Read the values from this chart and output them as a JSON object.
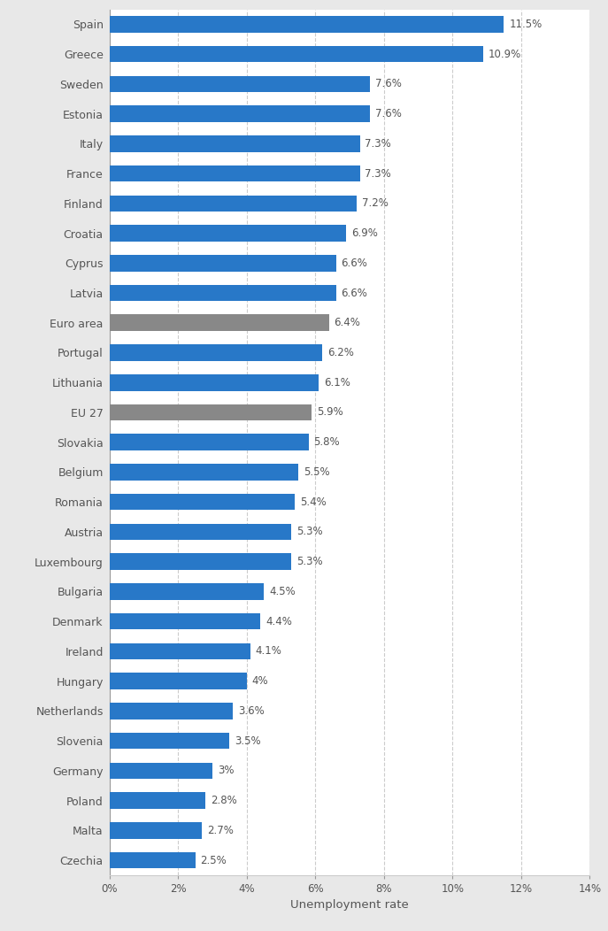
{
  "categories": [
    "Spain",
    "Greece",
    "Sweden",
    "Estonia",
    "Italy",
    "France",
    "Finland",
    "Croatia",
    "Cyprus",
    "Latvia",
    "Euro area",
    "Portugal",
    "Lithuania",
    "EU 27",
    "Slovakia",
    "Belgium",
    "Romania",
    "Austria",
    "Luxembourg",
    "Bulgaria",
    "Denmark",
    "Ireland",
    "Hungary",
    "Netherlands",
    "Slovenia",
    "Germany",
    "Poland",
    "Malta",
    "Czechia"
  ],
  "values": [
    11.5,
    10.9,
    7.6,
    7.6,
    7.3,
    7.3,
    7.2,
    6.9,
    6.6,
    6.6,
    6.4,
    6.2,
    6.1,
    5.9,
    5.8,
    5.5,
    5.4,
    5.3,
    5.3,
    4.5,
    4.4,
    4.1,
    4.0,
    3.6,
    3.5,
    3.0,
    2.8,
    2.7,
    2.5
  ],
  "bar_colors": [
    "#2878c8",
    "#2878c8",
    "#2878c8",
    "#2878c8",
    "#2878c8",
    "#2878c8",
    "#2878c8",
    "#2878c8",
    "#2878c8",
    "#2878c8",
    "#888888",
    "#2878c8",
    "#2878c8",
    "#888888",
    "#2878c8",
    "#2878c8",
    "#2878c8",
    "#2878c8",
    "#2878c8",
    "#2878c8",
    "#2878c8",
    "#2878c8",
    "#2878c8",
    "#2878c8",
    "#2878c8",
    "#2878c8",
    "#2878c8",
    "#2878c8",
    "#2878c8"
  ],
  "label_values": [
    "11.5%",
    "10.9%",
    "7.6%",
    "7.6%",
    "7.3%",
    "7.3%",
    "7.2%",
    "6.9%",
    "6.6%",
    "6.6%",
    "6.4%",
    "6.2%",
    "6.1%",
    "5.9%",
    "5.8%",
    "5.5%",
    "5.4%",
    "5.3%",
    "5.3%",
    "4.5%",
    "4.4%",
    "4.1%",
    "4%",
    "3.6%",
    "3.5%",
    "3%",
    "2.8%",
    "2.7%",
    "2.5%"
  ],
  "xlabel": "Unemployment rate",
  "xlim": [
    0,
    14
  ],
  "xtick_values": [
    0,
    2,
    4,
    6,
    8,
    10,
    12,
    14
  ],
  "xtick_labels": [
    "0%",
    "2%",
    "4%",
    "6%",
    "8%",
    "10%",
    "12%",
    "14%"
  ],
  "outer_background_color": "#e8e8e8",
  "plot_background_color": "#ffffff",
  "bar_height": 0.55,
  "label_fontsize": 8.5,
  "ytick_fontsize": 9.0,
  "xtick_fontsize": 8.5,
  "xlabel_fontsize": 9.5,
  "label_color": "#555555",
  "ytick_color": "#555555",
  "gridline_color": "#cccccc",
  "gridline_style": "--"
}
